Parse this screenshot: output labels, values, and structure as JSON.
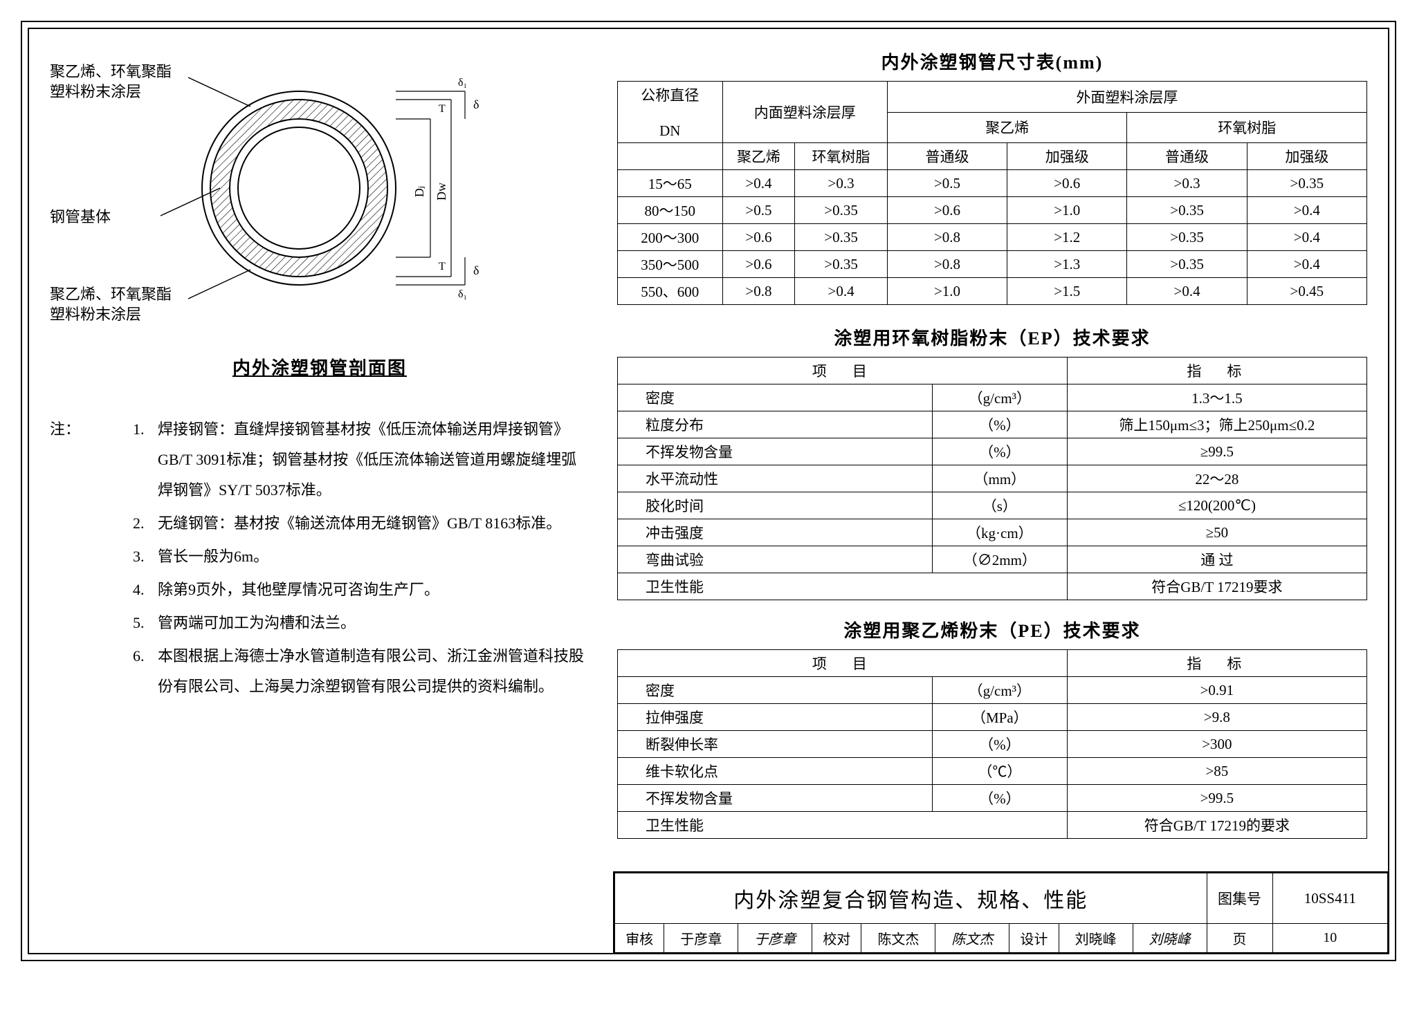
{
  "diagram": {
    "callout_top": "聚乙烯、环氧聚酯\n塑料粉末涂层",
    "callout_mid": "钢管基体",
    "callout_bot": "聚乙烯、环氧聚酯\n塑料粉末涂层",
    "title": "内外涂塑钢管剖面图",
    "dim_Dj": "Dⱼ",
    "dim_Dw": "Dw",
    "dim_delta": "δ",
    "dim_delta1_top": "δ₁",
    "dim_delta1_bot": "δ₁",
    "dim_T_top": "T",
    "dim_T_bot": "T",
    "colors": {
      "stroke": "#000000",
      "hatch": "#000000",
      "fill": "#ffffff"
    }
  },
  "notes": {
    "prefix": "注：",
    "items": [
      "焊接钢管：直缝焊接钢管基材按《低压流体输送用焊接钢管》GB/T 3091标准；钢管基材按《低压流体输送管道用螺旋缝埋弧焊钢管》SY/T 5037标准。",
      "无缝钢管：基材按《输送流体用无缝钢管》GB/T 8163标准。",
      "管长一般为6m。",
      "除第9页外，其他壁厚情况可咨询生产厂。",
      "管两端可加工为沟槽和法兰。",
      "本图根据上海德士净水管道制造有限公司、浙江金洲管道科技股份有限公司、上海昊力涂塑钢管有限公司提供的资料编制。"
    ]
  },
  "table1": {
    "title": "内外涂塑钢管尺寸表(mm)",
    "headers": {
      "dn_top": "公称直径",
      "dn_bot": "DN",
      "inner": "内面塑料涂层厚",
      "outer": "外面塑料涂层厚",
      "pe": "聚乙烯",
      "ep": "环氧树脂",
      "sub_pe": "聚乙烯",
      "sub_ep": "环氧树脂",
      "normal": "普通级",
      "strong": "加强级"
    },
    "rows": [
      {
        "dn": "15～65",
        "in_pe": ">0.4",
        "in_ep": ">0.3",
        "out_pe_n": ">0.5",
        "out_pe_s": ">0.6",
        "out_ep_n": ">0.3",
        "out_ep_s": ">0.35"
      },
      {
        "dn": "80～150",
        "in_pe": ">0.5",
        "in_ep": ">0.35",
        "out_pe_n": ">0.6",
        "out_pe_s": ">1.0",
        "out_ep_n": ">0.35",
        "out_ep_s": ">0.4"
      },
      {
        "dn": "200～300",
        "in_pe": ">0.6",
        "in_ep": ">0.35",
        "out_pe_n": ">0.8",
        "out_pe_s": ">1.2",
        "out_ep_n": ">0.35",
        "out_ep_s": ">0.4"
      },
      {
        "dn": "350～500",
        "in_pe": ">0.6",
        "in_ep": ">0.35",
        "out_pe_n": ">0.8",
        "out_pe_s": ">1.3",
        "out_ep_n": ">0.35",
        "out_ep_s": ">0.4"
      },
      {
        "dn": "550、600",
        "in_pe": ">0.8",
        "in_ep": ">0.4",
        "out_pe_n": ">1.0",
        "out_pe_s": ">1.5",
        "out_ep_n": ">0.4",
        "out_ep_s": ">0.45"
      }
    ]
  },
  "table2": {
    "title": "涂塑用环氧树脂粉末（EP）技术要求",
    "header_item": "项　目",
    "header_val": "指　标",
    "rows": [
      {
        "item": "密度",
        "unit": "（g/cm³）",
        "val": "1.3～1.5"
      },
      {
        "item": "粒度分布",
        "unit": "（%）",
        "val": "筛上150μm≤3；筛上250μm≤0.2"
      },
      {
        "item": "不挥发物含量",
        "unit": "（%）",
        "val": "≥99.5"
      },
      {
        "item": "水平流动性",
        "unit": "（mm）",
        "val": "22～28"
      },
      {
        "item": "胶化时间",
        "unit": "（s）",
        "val": "≤120(200℃)"
      },
      {
        "item": "冲击强度",
        "unit": "（kg·cm）",
        "val": "≥50"
      },
      {
        "item": "弯曲试验",
        "unit": "（∅2mm）",
        "val": "通 过"
      },
      {
        "item": "卫生性能",
        "unit": "",
        "val": "符合GB/T 17219要求"
      }
    ]
  },
  "table3": {
    "title": "涂塑用聚乙烯粉末（PE）技术要求",
    "header_item": "项　目",
    "header_val": "指　标",
    "rows": [
      {
        "item": "密度",
        "unit": "（g/cm³）",
        "val": ">0.91"
      },
      {
        "item": "拉伸强度",
        "unit": "（MPa）",
        "val": ">9.8"
      },
      {
        "item": "断裂伸长率",
        "unit": "（%）",
        "val": ">300"
      },
      {
        "item": "维卡软化点",
        "unit": "（℃）",
        "val": ">85"
      },
      {
        "item": "不挥发物含量",
        "unit": "（%）",
        "val": ">99.5"
      },
      {
        "item": "卫生性能",
        "unit": "",
        "val": "符合GB/T 17219的要求"
      }
    ]
  },
  "titleblock": {
    "main": "内外涂塑复合钢管构造、规格、性能",
    "col_set_label": "图集号",
    "col_set_value": "10SS411",
    "page_label": "页",
    "page_value": "10",
    "row2": {
      "review_l": "审核",
      "review_v": "于彦章",
      "review_sig": "于彦章",
      "check_l": "校对",
      "check_v": "陈文杰",
      "check_sig": "陈文杰",
      "design_l": "设计",
      "design_v": "刘晓峰",
      "design_sig": "刘晓峰"
    }
  }
}
